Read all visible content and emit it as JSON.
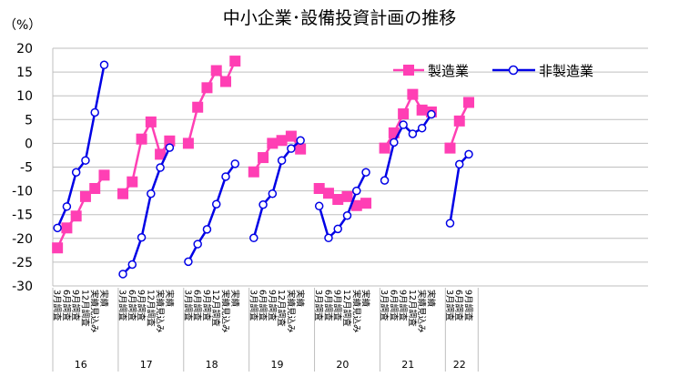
{
  "chart_data": {
    "type": "line",
    "title": "中小企業･設備投資計画の推移",
    "ylabel": "（%）",
    "xlabel": "",
    "ylim": [
      -30,
      20
    ],
    "yticks": [
      20,
      15,
      10,
      5,
      0,
      -5,
      -10,
      -15,
      -20,
      -25,
      -30
    ],
    "grid": "horizontal",
    "legend_position": "top-right",
    "years": [
      {
        "year": "16",
        "categories": [
          "3月調査",
          "6月調査",
          "9月調査",
          "12月調査",
          "実績見込み",
          "実績"
        ]
      },
      {
        "year": "17",
        "categories": [
          "3月調査",
          "6月調査",
          "9月調査",
          "12月調査",
          "実績見込み",
          "実績"
        ]
      },
      {
        "year": "18",
        "categories": [
          "3月調査",
          "6月調査",
          "9月調査",
          "12月調査",
          "実績見込み",
          "実績"
        ]
      },
      {
        "year": "19",
        "categories": [
          "3月調査",
          "6月調査",
          "9月調査",
          "12月調査",
          "実績見込み",
          "実績"
        ]
      },
      {
        "year": "20",
        "categories": [
          "3月調査",
          "6月調査",
          "9月調査",
          "12月調査",
          "実績見込み",
          "実績"
        ]
      },
      {
        "year": "21",
        "categories": [
          "3月調査",
          "6月調査",
          "9月調査",
          "12月調査",
          "実績見込み",
          "実績"
        ]
      },
      {
        "year": "22",
        "categories": [
          "3月調査",
          "6月調査",
          "9月調査"
        ]
      }
    ],
    "series": [
      {
        "name": "製造業",
        "color": "#ff3fb4",
        "marker": "square",
        "values": [
          [
            -22.0,
            -17.8,
            -15.3,
            -11.2,
            -9.5,
            -6.7
          ],
          [
            -10.6,
            -8.1,
            0.9,
            4.5,
            -2.3,
            0.5
          ],
          [
            0.0,
            7.6,
            11.7,
            15.3,
            13.0,
            17.3
          ],
          [
            -6.0,
            -3.0,
            0.0,
            0.6,
            1.5,
            -1.2
          ],
          [
            -9.5,
            -10.5,
            -11.8,
            -11.2,
            -13.1,
            -12.6
          ],
          [
            -1.0,
            2.2,
            6.2,
            10.3,
            7.0,
            6.6
          ],
          [
            -1.0,
            4.7,
            8.6
          ]
        ]
      },
      {
        "name": "非製造業",
        "color": "#0000e6",
        "marker": "circle",
        "values": [
          [
            -17.8,
            -13.3,
            -6.1,
            -3.6,
            6.5,
            16.5
          ],
          [
            -27.5,
            -25.5,
            -19.8,
            -10.6,
            -5.1,
            -0.9
          ],
          [
            -24.9,
            -21.2,
            -18.1,
            -12.8,
            -7.0,
            -4.3
          ],
          [
            -19.9,
            -12.9,
            -10.6,
            -3.6,
            -1.1,
            0.6
          ],
          [
            -13.2,
            -19.9,
            -18.0,
            -15.2,
            -10.0,
            -6.1
          ],
          [
            -7.8,
            0.2,
            3.9,
            2.0,
            3.2,
            6.1
          ],
          [
            -16.8,
            -4.4,
            -2.3
          ]
        ]
      }
    ]
  }
}
